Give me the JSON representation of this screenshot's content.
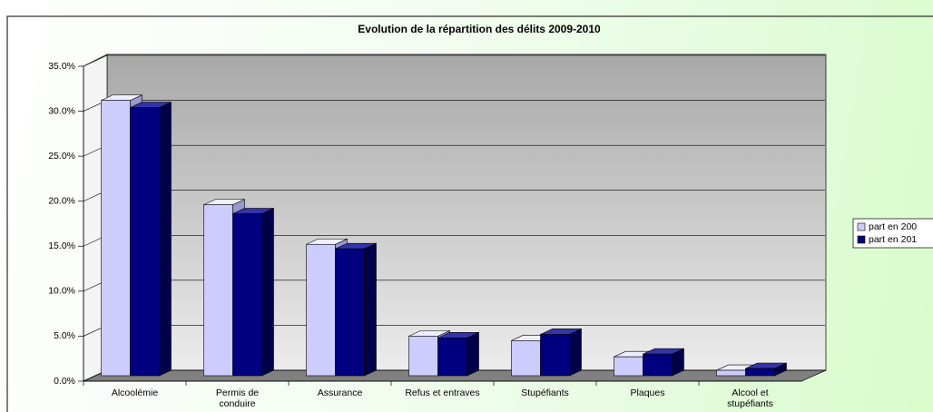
{
  "chart_data": {
    "type": "bar3d",
    "title": "Evolution de la répartition des délits 2009-2010",
    "categories": [
      "Alcoolémie",
      "Permis de conduire",
      "Assurance",
      "Refus et entraves",
      "Stupéfiants",
      "Plaques",
      "Alcool et stupéfiants"
    ],
    "series": [
      {
        "name": "part en 200",
        "color": "#ccccff",
        "values": [
          30.6,
          19.0,
          14.6,
          4.4,
          3.9,
          2.1,
          0.6
        ]
      },
      {
        "name": "part en 201",
        "color": "#000080",
        "values": [
          29.8,
          18.0,
          14.1,
          4.2,
          4.6,
          2.4,
          0.8
        ]
      }
    ],
    "ylim": [
      0,
      35
    ],
    "yticks": [
      {
        "value": 0,
        "label": "0.0%"
      },
      {
        "value": 5,
        "label": "5.0%"
      },
      {
        "value": 10,
        "label": "10.0%"
      },
      {
        "value": 15,
        "label": "15.0%"
      },
      {
        "value": 20,
        "label": "20.0%"
      },
      {
        "value": 25,
        "label": "25.0%"
      },
      {
        "value": 30,
        "label": "30.0%"
      },
      {
        "value": 35,
        "label": "35.0%"
      }
    ],
    "grid": true,
    "legend": "right"
  }
}
